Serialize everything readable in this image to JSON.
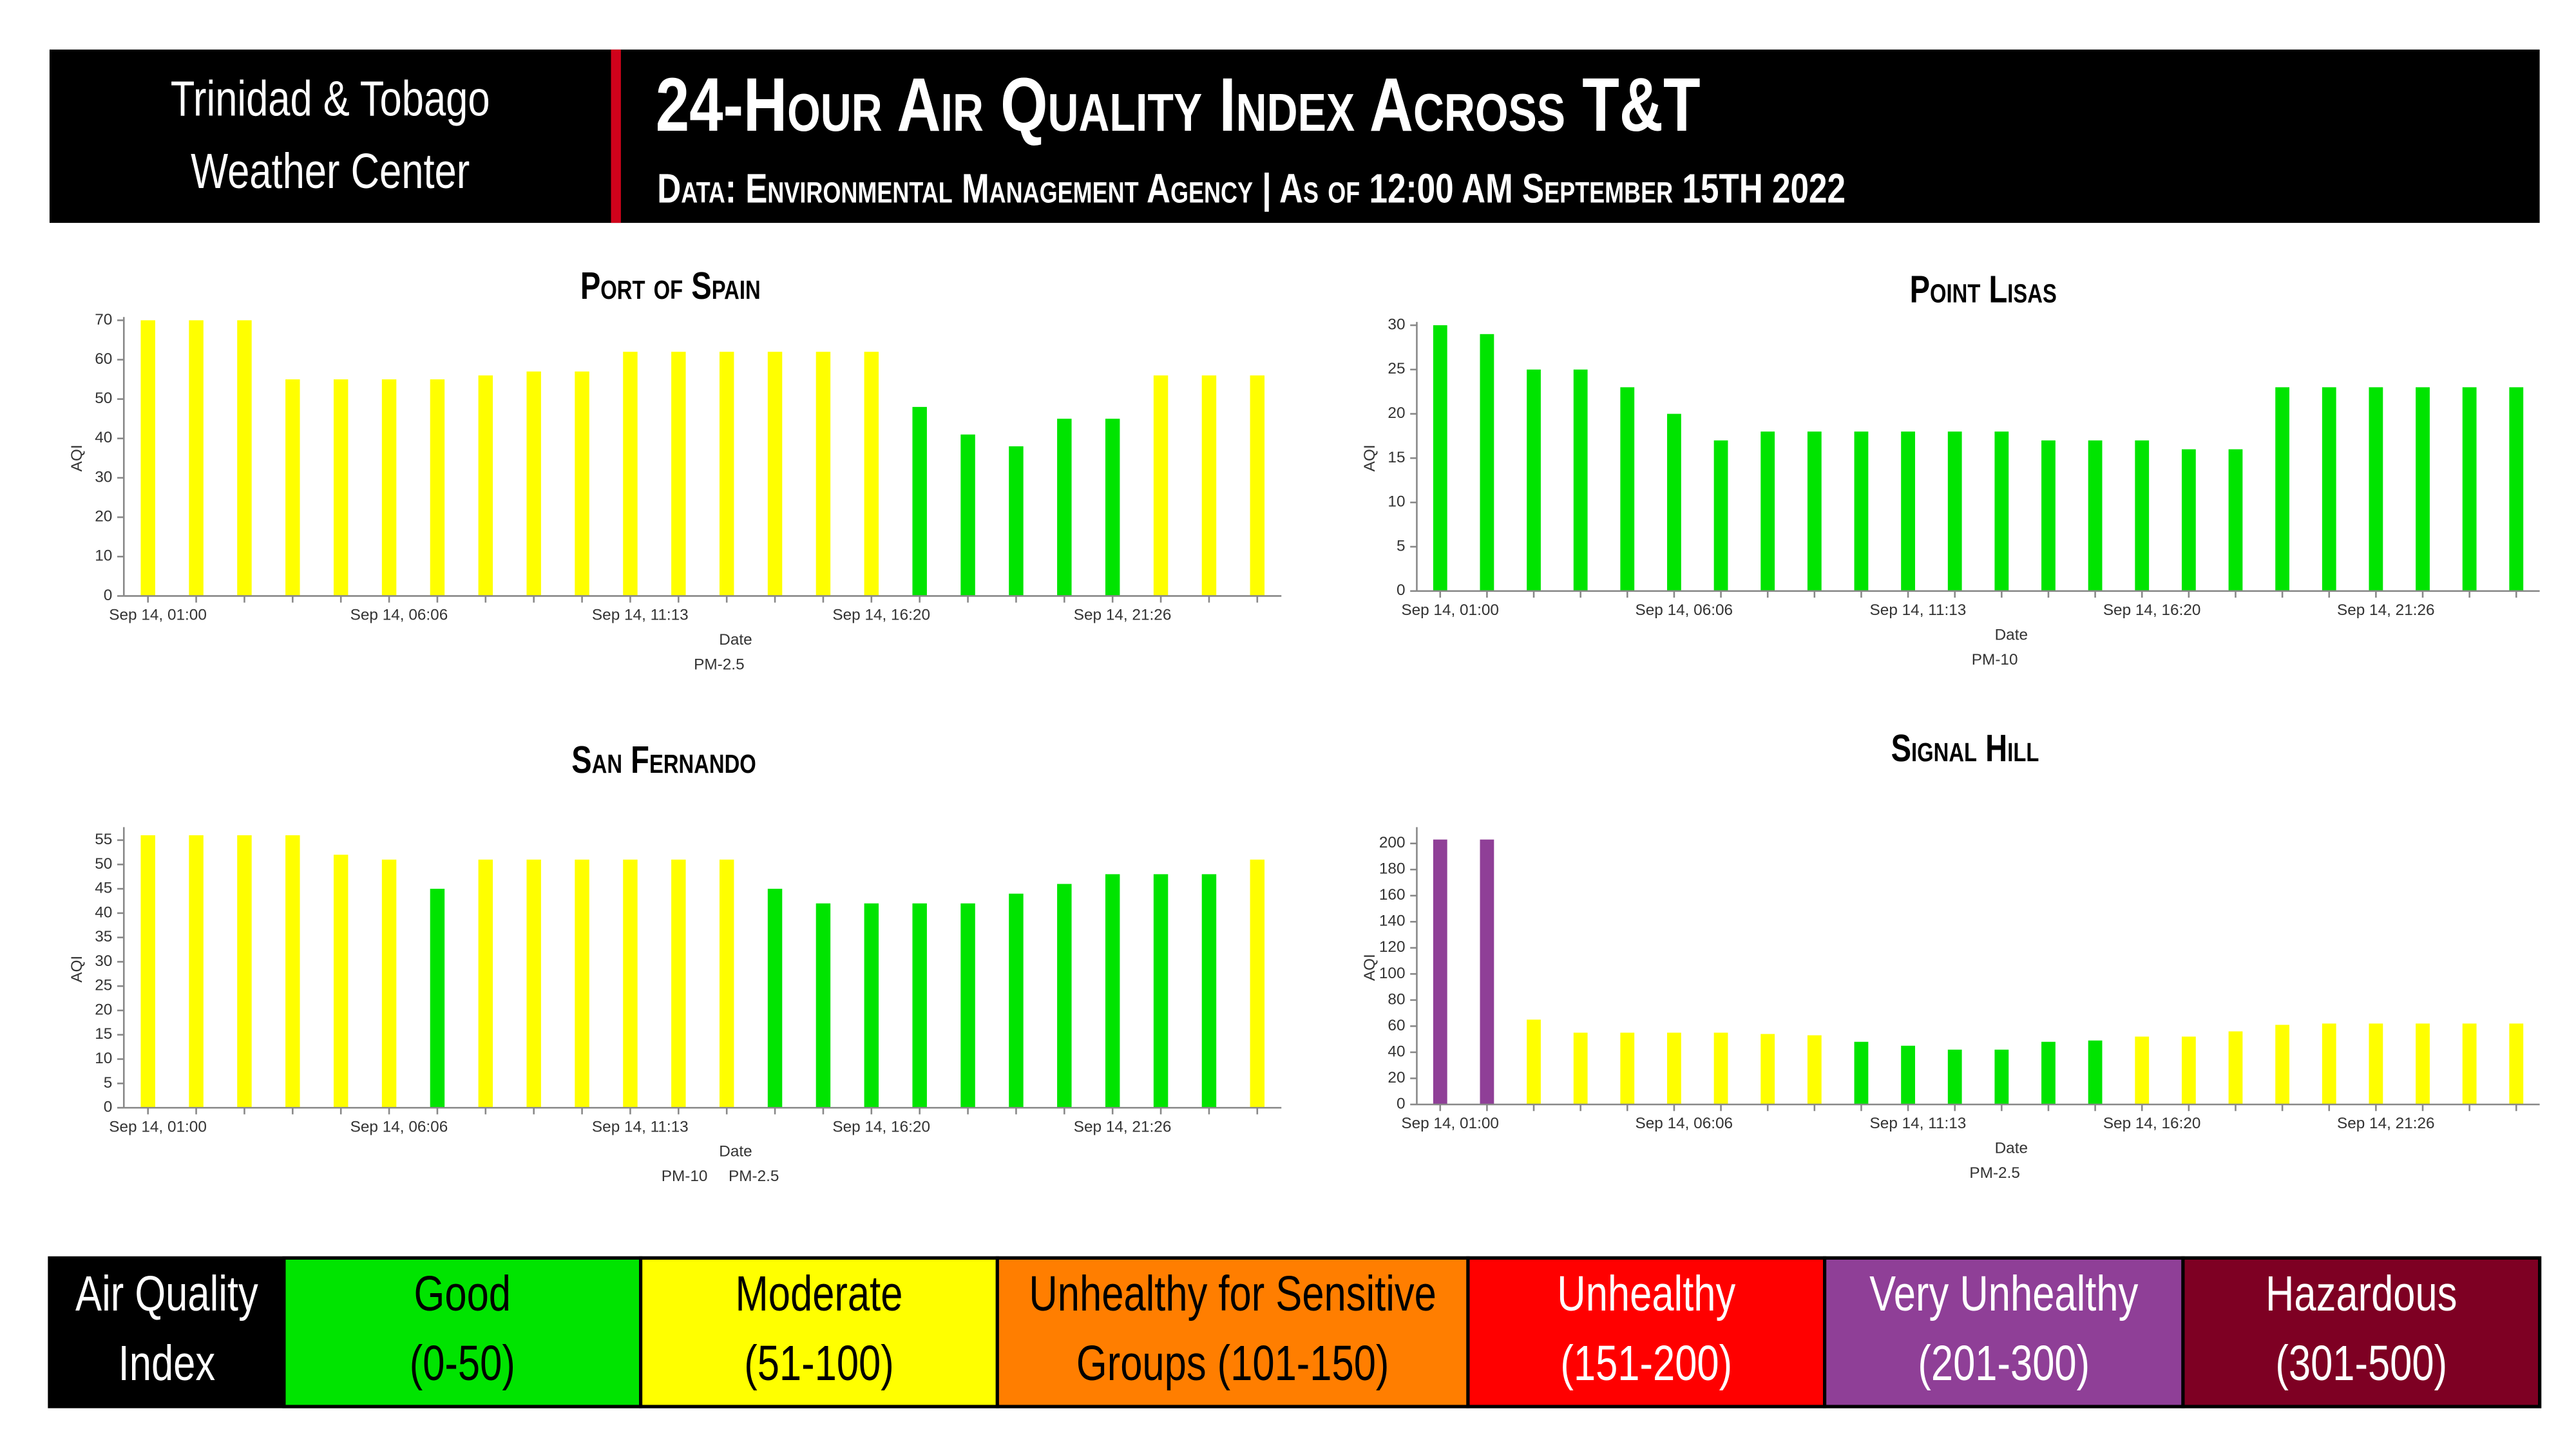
{
  "header": {
    "org_lines": [
      "Trinidad & Tobago",
      "Weather Center"
    ],
    "title": "24-Hour Air Quality Index Across T&T",
    "subtitle": "Data: Environmental Management Agency | As of 12:00 AM September 15TH 2022"
  },
  "chart_data": [
    {
      "type": "bar",
      "title": "Port of Spain",
      "categories": [
        "Sep 14, 01:00",
        null,
        null,
        null,
        null,
        "Sep 14, 06:06",
        null,
        null,
        null,
        null,
        "Sep 14, 11:13",
        null,
        null,
        null,
        null,
        "Sep 14, 16:20",
        null,
        null,
        null,
        null,
        "Sep 14, 21:26",
        null,
        null,
        null
      ],
      "values": [
        70,
        70,
        70,
        55,
        55,
        55,
        55,
        56,
        57,
        57,
        62,
        62,
        62,
        62,
        62,
        62,
        48,
        41,
        38,
        45,
        45,
        56,
        56,
        56
      ],
      "colors": [
        "#ffff00",
        "#ffff00",
        "#ffff00",
        "#ffff00",
        "#ffff00",
        "#ffff00",
        "#ffff00",
        "#ffff00",
        "#ffff00",
        "#ffff00",
        "#ffff00",
        "#ffff00",
        "#ffff00",
        "#ffff00",
        "#ffff00",
        "#ffff00",
        "#00e400",
        "#00e400",
        "#00e400",
        "#00e400",
        "#00e400",
        "#ffff00",
        "#ffff00",
        "#ffff00"
      ],
      "ylim": [
        0,
        70
      ],
      "yticks": [
        0,
        10,
        20,
        30,
        40,
        50,
        60,
        70
      ],
      "ylabel": "AQI",
      "xlabel": "Date",
      "legend": [
        "PM-2.5"
      ]
    },
    {
      "type": "bar",
      "title": "Point Lisas",
      "categories": [
        "Sep 14, 01:00",
        null,
        null,
        null,
        null,
        "Sep 14, 06:06",
        null,
        null,
        null,
        null,
        "Sep 14, 11:13",
        null,
        null,
        null,
        null,
        "Sep 14, 16:20",
        null,
        null,
        null,
        null,
        "Sep 14, 21:26",
        null,
        null,
        null
      ],
      "values": [
        30,
        29,
        25,
        25,
        23,
        20,
        17,
        18,
        18,
        18,
        18,
        18,
        18,
        17,
        17,
        17,
        16,
        16,
        23,
        23,
        23,
        23,
        23,
        23
      ],
      "colors": [
        "#00e400",
        "#00e400",
        "#00e400",
        "#00e400",
        "#00e400",
        "#00e400",
        "#00e400",
        "#00e400",
        "#00e400",
        "#00e400",
        "#00e400",
        "#00e400",
        "#00e400",
        "#00e400",
        "#00e400",
        "#00e400",
        "#00e400",
        "#00e400",
        "#00e400",
        "#00e400",
        "#00e400",
        "#00e400",
        "#00e400",
        "#00e400"
      ],
      "ylim": [
        0,
        30
      ],
      "yticks": [
        0,
        5,
        10,
        15,
        20,
        25,
        30
      ],
      "ylabel": "AQI",
      "xlabel": "Date",
      "legend": [
        "PM-10"
      ]
    },
    {
      "type": "bar",
      "title": "San Fernando",
      "categories": [
        "Sep 14, 01:00",
        null,
        null,
        null,
        null,
        "Sep 14, 06:06",
        null,
        null,
        null,
        null,
        "Sep 14, 11:13",
        null,
        null,
        null,
        null,
        "Sep 14, 16:20",
        null,
        null,
        null,
        null,
        "Sep 14, 21:26",
        null,
        null,
        null
      ],
      "values": [
        56,
        56,
        56,
        56,
        52,
        51,
        45,
        51,
        51,
        51,
        51,
        51,
        51,
        45,
        42,
        42,
        42,
        42,
        44,
        46,
        48,
        48,
        48,
        51
      ],
      "colors": [
        "#ffff00",
        "#ffff00",
        "#ffff00",
        "#ffff00",
        "#ffff00",
        "#ffff00",
        "#00e400",
        "#ffff00",
        "#ffff00",
        "#ffff00",
        "#ffff00",
        "#ffff00",
        "#ffff00",
        "#00e400",
        "#00e400",
        "#00e400",
        "#00e400",
        "#00e400",
        "#00e400",
        "#00e400",
        "#00e400",
        "#00e400",
        "#00e400",
        "#ffff00"
      ],
      "ylim": [
        0,
        57
      ],
      "yticks": [
        0,
        5,
        10,
        15,
        20,
        25,
        30,
        35,
        40,
        45,
        50,
        55
      ],
      "ylabel": "AQI",
      "xlabel": "Date",
      "legend": [
        "PM-10",
        "PM-2.5"
      ]
    },
    {
      "type": "bar",
      "title": "Signal Hill",
      "categories": [
        "Sep 14, 01:00",
        null,
        null,
        null,
        null,
        "Sep 14, 06:06",
        null,
        null,
        null,
        null,
        "Sep 14, 11:13",
        null,
        null,
        null,
        null,
        "Sep 14, 16:20",
        null,
        null,
        null,
        null,
        "Sep 14, 21:26",
        null,
        null,
        null
      ],
      "values": [
        203,
        203,
        65,
        55,
        55,
        55,
        55,
        54,
        53,
        48,
        45,
        42,
        42,
        48,
        49,
        52,
        52,
        56,
        61,
        62,
        62,
        62,
        62,
        62
      ],
      "colors": [
        "#8f3f97",
        "#8f3f97",
        "#ffff00",
        "#ffff00",
        "#ffff00",
        "#ffff00",
        "#ffff00",
        "#ffff00",
        "#ffff00",
        "#00e400",
        "#00e400",
        "#00e400",
        "#00e400",
        "#00e400",
        "#00e400",
        "#ffff00",
        "#ffff00",
        "#ffff00",
        "#ffff00",
        "#ffff00",
        "#ffff00",
        "#ffff00",
        "#ffff00",
        "#ffff00"
      ],
      "ylim": [
        0,
        210
      ],
      "yticks": [
        0,
        20,
        40,
        60,
        80,
        100,
        120,
        140,
        160,
        180,
        200
      ],
      "ylabel": "AQI",
      "xlabel": "Date",
      "legend": [
        "PM-2.5"
      ]
    }
  ],
  "aqi_scale": {
    "title_lines": [
      "Air Quality",
      "Index"
    ],
    "levels": [
      {
        "lines": [
          "Good",
          "(0-50)"
        ],
        "color": "#00e400",
        "text_color": "#000000"
      },
      {
        "lines": [
          "Moderate",
          "(51-100)"
        ],
        "color": "#ffff00",
        "text_color": "#000000"
      },
      {
        "lines": [
          "Unhealthy for Sensitive",
          "Groups (101-150)"
        ],
        "color": "#ff7e00",
        "text_color": "#000000"
      },
      {
        "lines": [
          "Unhealthy",
          "(151-200)"
        ],
        "color": "#ff0000",
        "text_color": "#ffffff"
      },
      {
        "lines": [
          "Very Unhealthy",
          "(201-300)"
        ],
        "color": "#8f3f97",
        "text_color": "#ffffff"
      },
      {
        "lines": [
          "Hazardous",
          "(301-500)"
        ],
        "color": "#7e0023",
        "text_color": "#ffffff"
      }
    ]
  }
}
